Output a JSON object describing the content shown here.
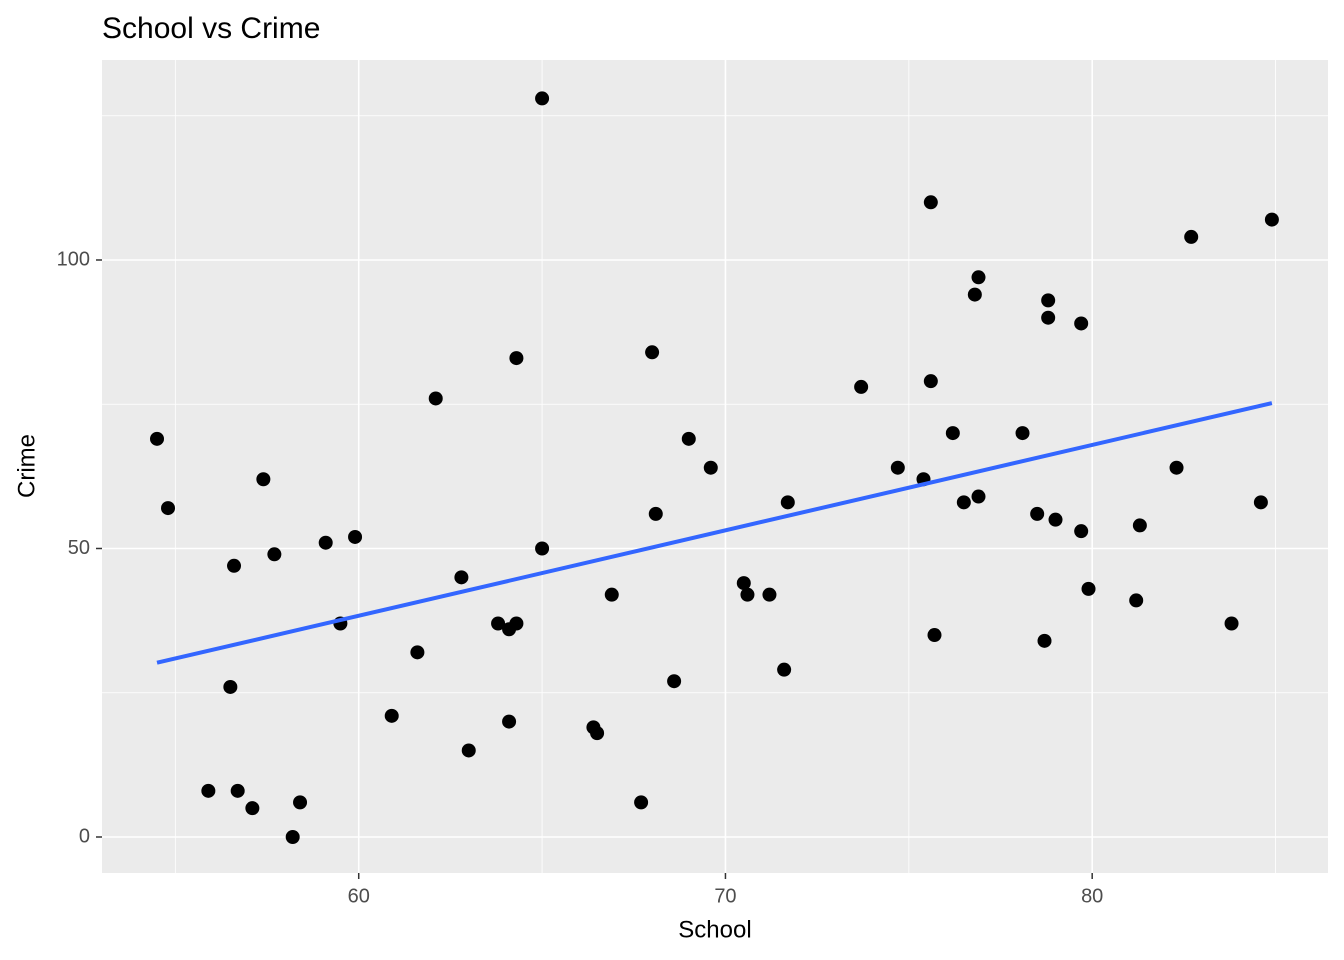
{
  "chart_data": {
    "type": "scatter",
    "title": "School vs Crime",
    "x_label": "School",
    "y_label": "Crime",
    "x": [
      54.5,
      54.8,
      55.9,
      56.6,
      56.5,
      56.7,
      57.1,
      57.4,
      57.7,
      58.2,
      58.4,
      59.1,
      59.5,
      59.9,
      60.9,
      61.6,
      62.1,
      62.8,
      63.0,
      63.8,
      64.1,
      64.3,
      64.1,
      64.3,
      65.0,
      65.0,
      66.4,
      66.5,
      66.9,
      67.7,
      68.0,
      68.1,
      68.6,
      69.0,
      69.6,
      70.5,
      70.6,
      71.2,
      71.6,
      71.7,
      73.7,
      74.7,
      75.4,
      75.6,
      75.6,
      75.7,
      76.2,
      76.5,
      76.8,
      76.9,
      76.9,
      78.1,
      78.5,
      78.7,
      78.8,
      78.8,
      79.0,
      79.7,
      79.7,
      79.9,
      81.2,
      81.3,
      82.3,
      82.7,
      83.8,
      84.6,
      84.9
    ],
    "series": [
      {
        "name": "Crime",
        "color": "#000000",
        "values": [
          69,
          57,
          8,
          47,
          26,
          8,
          5,
          62,
          49,
          0,
          6,
          51,
          37,
          52,
          21,
          32,
          76,
          45,
          15,
          37,
          36,
          37,
          20,
          83,
          50,
          128,
          19,
          18,
          42,
          6,
          84,
          56,
          27,
          69,
          64,
          44,
          42,
          42,
          29,
          58,
          78,
          64,
          62,
          110,
          79,
          35,
          70,
          58,
          94,
          97,
          59,
          70,
          56,
          34,
          93,
          90,
          55,
          89,
          53,
          43,
          41,
          54,
          64,
          104,
          37,
          58,
          107
        ]
      }
    ],
    "trend": {
      "color": "#3366ff",
      "x": [
        54.5,
        84.9
      ],
      "y": [
        30.2,
        75.2
      ]
    },
    "xlim": [
      53.0,
      86.43
    ],
    "ylim": [
      -6.24,
      134.66
    ],
    "xticks": [
      60,
      70,
      80
    ],
    "yticks": [
      0,
      50,
      100
    ],
    "x_minor_grid": [
      55,
      65,
      75,
      85
    ],
    "y_minor_grid": [
      25,
      75,
      125
    ],
    "grid": true
  }
}
